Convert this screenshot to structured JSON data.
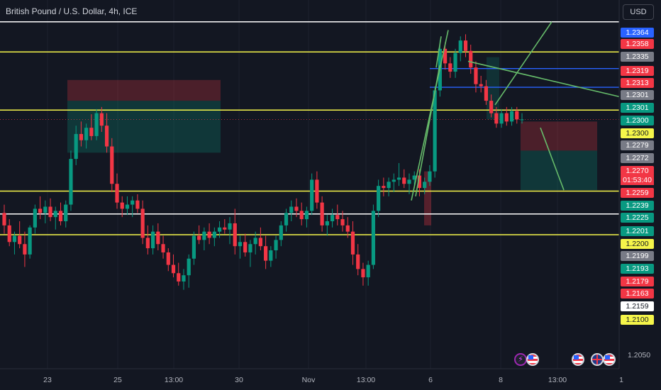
{
  "header": {
    "title": "British Pound / U.S. Dollar, 4h, ICE",
    "currency_button": "USD"
  },
  "chart_data": {
    "type": "candlestick",
    "symbol": "British Pound / U.S. Dollar",
    "interval": "4h",
    "exchange": "ICE",
    "ylim": [
      1.203,
      1.2385
    ],
    "y_ticks": [
      "1.2050"
    ],
    "x_ticks": [
      "23",
      "25",
      "13:00",
      "30",
      "Nov",
      "13:00",
      "6",
      "8",
      "13:00",
      "1"
    ],
    "countdown": "01:53:40",
    "candles": [
      [
        1.218,
        1.2188,
        1.216,
        1.2168
      ],
      [
        1.2168,
        1.2174,
        1.2148,
        1.2152
      ],
      [
        1.2152,
        1.2162,
        1.214,
        1.2158
      ],
      [
        1.2158,
        1.2172,
        1.2146,
        1.215
      ],
      [
        1.215,
        1.2162,
        1.2128,
        1.214
      ],
      [
        1.214,
        1.2168,
        1.2136,
        1.2166
      ],
      [
        1.2166,
        1.2188,
        1.216,
        1.2184
      ],
      [
        1.2184,
        1.2196,
        1.2174,
        1.218
      ],
      [
        1.218,
        1.2192,
        1.217,
        1.2186
      ],
      [
        1.2186,
        1.2194,
        1.2172,
        1.2176
      ],
      [
        1.2176,
        1.2186,
        1.2164,
        1.2182
      ],
      [
        1.2182,
        1.219,
        1.2168,
        1.2172
      ],
      [
        1.2172,
        1.2192,
        1.2166,
        1.2188
      ],
      [
        1.2188,
        1.224,
        1.2182,
        1.2232
      ],
      [
        1.2232,
        1.2264,
        1.2226,
        1.2256
      ],
      [
        1.2256,
        1.2268,
        1.2244,
        1.225
      ],
      [
        1.225,
        1.2266,
        1.2242,
        1.2262
      ],
      [
        1.2262,
        1.2275,
        1.225,
        1.2254
      ],
      [
        1.2254,
        1.228,
        1.225,
        1.2276
      ],
      [
        1.2276,
        1.2282,
        1.2258,
        1.2264
      ],
      [
        1.2264,
        1.2276,
        1.2238,
        1.2244
      ],
      [
        1.2244,
        1.2252,
        1.22,
        1.2208
      ],
      [
        1.2208,
        1.2218,
        1.2184,
        1.219
      ],
      [
        1.219,
        1.2196,
        1.2176,
        1.2184
      ],
      [
        1.2184,
        1.2196,
        1.2178,
        1.2188
      ],
      [
        1.2188,
        1.2196,
        1.2176,
        1.2192
      ],
      [
        1.2192,
        1.2198,
        1.218,
        1.2184
      ],
      [
        1.2184,
        1.2192,
        1.215,
        1.2156
      ],
      [
        1.2156,
        1.2168,
        1.214,
        1.2146
      ],
      [
        1.2146,
        1.2168,
        1.214,
        1.2162
      ],
      [
        1.2162,
        1.217,
        1.2144,
        1.215
      ],
      [
        1.215,
        1.2158,
        1.2136,
        1.2142
      ],
      [
        1.2142,
        1.2146,
        1.2124,
        1.213
      ],
      [
        1.213,
        1.214,
        1.2118,
        1.2122
      ],
      [
        1.2122,
        1.2132,
        1.211,
        1.2114
      ],
      [
        1.2114,
        1.2126,
        1.2106,
        1.212
      ],
      [
        1.212,
        1.214,
        1.2108,
        1.2136
      ],
      [
        1.2136,
        1.2162,
        1.213,
        1.2158
      ],
      [
        1.2158,
        1.2168,
        1.215,
        1.2154
      ],
      [
        1.2154,
        1.2166,
        1.2144,
        1.2162
      ],
      [
        1.2162,
        1.217,
        1.215,
        1.2156
      ],
      [
        1.2156,
        1.2166,
        1.2148,
        1.2162
      ],
      [
        1.2162,
        1.2172,
        1.2156,
        1.2166
      ],
      [
        1.2166,
        1.2174,
        1.216,
        1.2164
      ],
      [
        1.2164,
        1.2176,
        1.215,
        1.217
      ],
      [
        1.217,
        1.2184,
        1.214,
        1.2148
      ],
      [
        1.2148,
        1.2158,
        1.2136,
        1.2152
      ],
      [
        1.2152,
        1.216,
        1.2138,
        1.2142
      ],
      [
        1.2142,
        1.2154,
        1.2128,
        1.215
      ],
      [
        1.215,
        1.2162,
        1.214,
        1.2156
      ],
      [
        1.2156,
        1.2166,
        1.2144,
        1.2148
      ],
      [
        1.2148,
        1.2158,
        1.2126,
        1.2134
      ],
      [
        1.2134,
        1.2148,
        1.2128,
        1.2144
      ],
      [
        1.2144,
        1.2158,
        1.2136,
        1.2154
      ],
      [
        1.2154,
        1.2172,
        1.2148,
        1.2168
      ],
      [
        1.2168,
        1.2184,
        1.2162,
        1.218
      ],
      [
        1.218,
        1.2192,
        1.2172,
        1.2186
      ],
      [
        1.2186,
        1.2194,
        1.2176,
        1.2182
      ],
      [
        1.2182,
        1.219,
        1.2168,
        1.2174
      ],
      [
        1.2174,
        1.2186,
        1.2166,
        1.2182
      ],
      [
        1.2182,
        1.2218,
        1.2178,
        1.2212
      ],
      [
        1.2212,
        1.222,
        1.2184,
        1.219
      ],
      [
        1.219,
        1.2196,
        1.2162,
        1.2168
      ],
      [
        1.2168,
        1.2178,
        1.2158,
        1.2172
      ],
      [
        1.2172,
        1.2184,
        1.2166,
        1.2178
      ],
      [
        1.2178,
        1.2188,
        1.2168,
        1.2174
      ],
      [
        1.2174,
        1.2182,
        1.2162,
        1.2168
      ],
      [
        1.2168,
        1.2176,
        1.2156,
        1.2162
      ],
      [
        1.2162,
        1.2172,
        1.213,
        1.214
      ],
      [
        1.214,
        1.215,
        1.212,
        1.2126
      ],
      [
        1.2126,
        1.2132,
        1.211,
        1.2118
      ],
      [
        1.2118,
        1.2134,
        1.211,
        1.213
      ],
      [
        1.213,
        1.2188,
        1.2126,
        1.2182
      ],
      [
        1.2182,
        1.2212,
        1.2176,
        1.2206
      ],
      [
        1.2206,
        1.2214,
        1.2196,
        1.2204
      ],
      [
        1.2204,
        1.2214,
        1.2196,
        1.221
      ],
      [
        1.221,
        1.2218,
        1.22,
        1.2212
      ],
      [
        1.2212,
        1.2228,
        1.2206,
        1.2214
      ],
      [
        1.2214,
        1.2222,
        1.2204,
        1.2208
      ],
      [
        1.2208,
        1.2218,
        1.2198,
        1.2212
      ],
      [
        1.2212,
        1.222,
        1.2204,
        1.2216
      ],
      [
        1.2216,
        1.2222,
        1.2196,
        1.2204
      ],
      [
        1.2204,
        1.2214,
        1.2198,
        1.221
      ],
      [
        1.221,
        1.2226,
        1.2206,
        1.222
      ],
      [
        1.222,
        1.2302,
        1.2214,
        1.2298
      ],
      [
        1.2298,
        1.2346,
        1.2292,
        1.2338
      ],
      [
        1.2338,
        1.2344,
        1.2318,
        1.2324
      ],
      [
        1.2324,
        1.233,
        1.231,
        1.2316
      ],
      [
        1.2316,
        1.2338,
        1.231,
        1.2334
      ],
      [
        1.2334,
        1.235,
        1.2326,
        1.2346
      ],
      [
        1.2346,
        1.2352,
        1.233,
        1.2336
      ],
      [
        1.2336,
        1.2342,
        1.2314,
        1.232
      ],
      [
        1.232,
        1.2326,
        1.2296,
        1.2304
      ],
      [
        1.2304,
        1.2312,
        1.2296,
        1.2302
      ],
      [
        1.2302,
        1.2308,
        1.2284,
        1.2288
      ],
      [
        1.2288,
        1.2294,
        1.2272,
        1.2276
      ],
      [
        1.2276,
        1.2282,
        1.2262,
        1.2266
      ],
      [
        1.2266,
        1.228,
        1.2262,
        1.2276
      ],
      [
        1.2276,
        1.2282,
        1.2264,
        1.2268
      ],
      [
        1.2268,
        1.2282,
        1.2264,
        1.2278
      ],
      [
        1.2278,
        1.2282,
        1.2266,
        1.227
      ],
      [
        1.227,
        1.2276,
        1.2266,
        1.227
      ]
    ],
    "horizontal_levels": [
      {
        "value": 1.2364,
        "color": "#ffffff"
      },
      {
        "value": 1.2335,
        "color": "#f5f54a"
      },
      {
        "value": 1.2279,
        "color": "#f5f54a"
      },
      {
        "value": 1.2201,
        "color": "#f5f54a"
      },
      {
        "value": 1.2179,
        "color": "#ffffff"
      },
      {
        "value": 1.2159,
        "color": "#f5f54a"
      }
    ],
    "blue_levels": [
      1.2319,
      1.2301
    ],
    "price_labels": [
      {
        "text": "1.2364",
        "bg": "#2962ff",
        "fg": "light"
      },
      {
        "text": "1.2358",
        "bg": "#f23645",
        "fg": "light"
      },
      {
        "text": "1.2335",
        "bg": "#787b86",
        "fg": "light"
      },
      {
        "text": "1.2319",
        "bg": "#f23645",
        "fg": "light"
      },
      {
        "text": "1.2313",
        "bg": "#f23645",
        "fg": "light"
      },
      {
        "text": "1.2301",
        "bg": "#787b86",
        "fg": "light"
      },
      {
        "text": "1.2301",
        "bg": "#089981",
        "fg": "light"
      },
      {
        "text": "1.2300",
        "bg": "#089981",
        "fg": "light"
      },
      {
        "text": "1.2300",
        "bg": "#f5f54a",
        "fg": "dark"
      },
      {
        "text": "1.2279",
        "bg": "#787b86",
        "fg": "light"
      },
      {
        "text": "1.2272",
        "bg": "#787b86",
        "fg": "light"
      },
      {
        "text": "1.2270",
        "bg": "#f23645",
        "fg": "light"
      },
      {
        "text": "1.2259",
        "bg": "#f23645",
        "fg": "light"
      },
      {
        "text": "1.2239",
        "bg": "#089981",
        "fg": "light"
      },
      {
        "text": "1.2225",
        "bg": "#089981",
        "fg": "light"
      },
      {
        "text": "1.2201",
        "bg": "#089981",
        "fg": "light"
      },
      {
        "text": "1.2200",
        "bg": "#f5f54a",
        "fg": "dark"
      },
      {
        "text": "1.2199",
        "bg": "#787b86",
        "fg": "light"
      },
      {
        "text": "1.2193",
        "bg": "#089981",
        "fg": "light"
      },
      {
        "text": "1.2179",
        "bg": "#f23645",
        "fg": "light"
      },
      {
        "text": "1.2163",
        "bg": "#f23645",
        "fg": "light"
      },
      {
        "text": "1.2159",
        "bg": "#ffffff",
        "fg": "dark"
      },
      {
        "text": "1.2100",
        "bg": "#f5f54a",
        "fg": "dark"
      }
    ],
    "colors": {
      "up": "#089981",
      "down": "#f23645",
      "trend_line": "#66bb6a",
      "level_blue": "#2962ff",
      "background": "#131722"
    },
    "event_icons": [
      "lightning-icon",
      "us-flag-icon",
      "us-flag-icon",
      "uk-flag-icon",
      "us-flag-icon"
    ]
  }
}
